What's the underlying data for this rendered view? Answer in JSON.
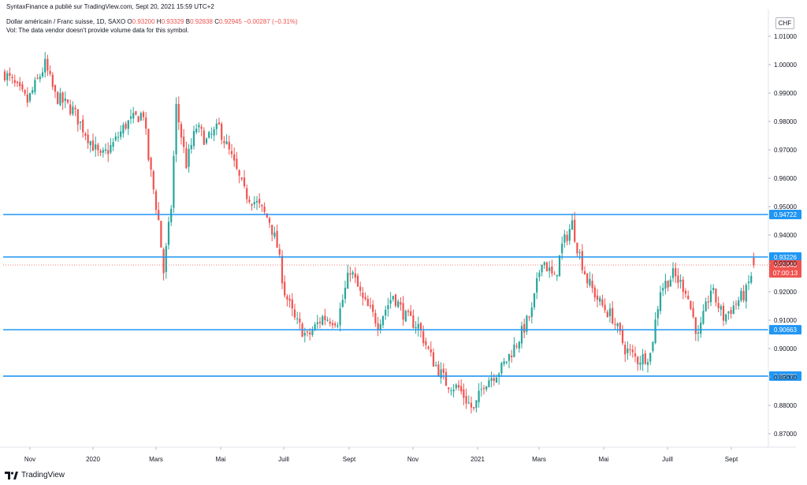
{
  "header": {
    "publisher": "SyntaxFinance a  publié sur TradingView.com, Sept 20, 2021 15:59 UTC+2",
    "symbol": "Dollar américain / Franc suisse, 1D, SAXO",
    "open_label": "O",
    "open": "0.93200",
    "high_label": "H",
    "high": "0.93329",
    "low_label": "B",
    "low": "0.92838",
    "close_label": "C",
    "close": "0.92945",
    "change": "−0.00287 (−0.31%)",
    "volume_note": "Vol: The data vendor doesn't provide volume data for this symbol."
  },
  "currency_button": "CHF",
  "footer": {
    "brand": "TradingView"
  },
  "colors": {
    "up": "#26a69a",
    "down": "#ef5350",
    "level_line": "#2196f3",
    "last_price": "#ef5350"
  },
  "chart_data": {
    "type": "candlestick",
    "y_ticks": [
      "0.87000",
      "0.88000",
      "0.89000",
      "0.90000",
      "0.91000",
      "0.92000",
      "0.93000",
      "0.94000",
      "0.95000",
      "0.96000",
      "0.97000",
      "0.98000",
      "0.99000",
      "1.00000",
      "1.01000"
    ],
    "x_ticks": [
      "Nov",
      "2020",
      "Mars",
      "Mai",
      "Juill",
      "Sept",
      "Nov",
      "2021",
      "Mars",
      "Mai",
      "Juill",
      "Sept"
    ],
    "horizontal_levels": [
      {
        "value": 0.94722,
        "label": "0.94722"
      },
      {
        "value": 0.93226,
        "label": "0.93226"
      },
      {
        "value": 0.90663,
        "label": "0.90663"
      },
      {
        "value": 0.8903,
        "label": "0.89030"
      }
    ],
    "last_price": {
      "value": 0.92945,
      "label": "0.92945",
      "countdown": "07:00:13"
    },
    "price_path": [
      [
        0,
        0.997
      ],
      [
        9,
        0.987
      ],
      [
        16,
        1.0
      ],
      [
        20,
        0.989
      ],
      [
        27,
        0.984
      ],
      [
        34,
        0.973
      ],
      [
        38,
        0.967
      ],
      [
        43,
        0.972
      ],
      [
        48,
        0.979
      ],
      [
        55,
        0.983
      ],
      [
        57,
        0.967
      ],
      [
        61,
        0.945
      ],
      [
        63,
        0.927
      ],
      [
        66,
        0.95
      ],
      [
        68,
        0.985
      ],
      [
        72,
        0.965
      ],
      [
        76,
        0.978
      ],
      [
        80,
        0.973
      ],
      [
        85,
        0.978
      ],
      [
        90,
        0.967
      ],
      [
        95,
        0.955
      ],
      [
        100,
        0.951
      ],
      [
        105,
        0.945
      ],
      [
        108,
        0.936
      ],
      [
        111,
        0.92
      ],
      [
        115,
        0.91
      ],
      [
        120,
        0.904
      ],
      [
        126,
        0.911
      ],
      [
        132,
        0.91
      ],
      [
        137,
        0.928
      ],
      [
        142,
        0.917
      ],
      [
        148,
        0.909
      ],
      [
        154,
        0.919
      ],
      [
        159,
        0.911
      ],
      [
        164,
        0.908
      ],
      [
        169,
        0.897
      ],
      [
        175,
        0.888
      ],
      [
        180,
        0.886
      ],
      [
        186,
        0.878
      ],
      [
        190,
        0.888
      ],
      [
        197,
        0.893
      ],
      [
        203,
        0.902
      ],
      [
        209,
        0.913
      ],
      [
        213,
        0.932
      ],
      [
        218,
        0.924
      ],
      [
        221,
        0.936
      ],
      [
        225,
        0.944
      ],
      [
        227,
        0.936
      ],
      [
        231,
        0.924
      ],
      [
        236,
        0.916
      ],
      [
        241,
        0.911
      ],
      [
        246,
        0.9
      ],
      [
        251,
        0.896
      ],
      [
        256,
        0.898
      ],
      [
        260,
        0.921
      ],
      [
        265,
        0.926
      ],
      [
        270,
        0.921
      ],
      [
        275,
        0.904
      ],
      [
        280,
        0.921
      ],
      [
        285,
        0.911
      ],
      [
        290,
        0.916
      ],
      [
        294,
        0.92
      ],
      [
        297,
        0.929
      ]
    ]
  }
}
